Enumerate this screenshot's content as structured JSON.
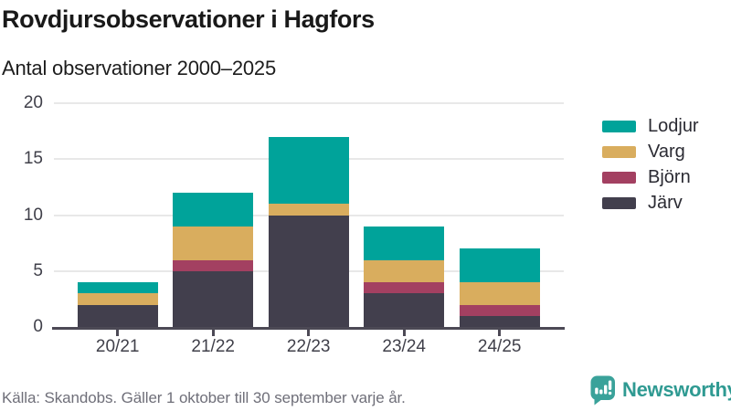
{
  "header": {
    "title": "Rovdjursobservationer i Hagfors",
    "subtitle": "Antal observationer 2000–2025"
  },
  "chart_data": {
    "type": "bar",
    "stacked": true,
    "title": "Rovdjursobservationer i Hagfors",
    "subtitle": "Antal observationer 2000–2025",
    "categories": [
      "20/21",
      "21/22",
      "22/23",
      "23/24",
      "24/25"
    ],
    "series": [
      {
        "name": "Järv",
        "color": "#423f4d",
        "values": [
          2,
          5,
          10,
          3,
          1
        ]
      },
      {
        "name": "Björn",
        "color": "#a34061",
        "values": [
          0,
          1,
          0,
          1,
          1
        ]
      },
      {
        "name": "Varg",
        "color": "#d9ad5e",
        "values": [
          1,
          3,
          1,
          2,
          2
        ]
      },
      {
        "name": "Lodjur",
        "color": "#00a39a",
        "values": [
          1,
          3,
          6,
          3,
          3
        ]
      }
    ],
    "totals": [
      4,
      12,
      17,
      9,
      7
    ],
    "xlabel": "",
    "ylabel": "",
    "ylim": [
      0,
      20
    ],
    "yticks": [
      0,
      5,
      10,
      15,
      20
    ],
    "grid": true,
    "legend_position": "right",
    "legend_order": [
      "Lodjur",
      "Varg",
      "Björn",
      "Järv"
    ]
  },
  "legend": {
    "items": [
      {
        "label": "Lodjur",
        "color": "#00a39a"
      },
      {
        "label": "Varg",
        "color": "#d9ad5e"
      },
      {
        "label": "Björn",
        "color": "#a34061"
      },
      {
        "label": "Järv",
        "color": "#423f4d"
      }
    ]
  },
  "footer": {
    "source": "Källa: Skandobs. Gäller 1 oktober till 30 september varje år."
  },
  "brand": {
    "name": "Newsworthy",
    "icon": "newsworthy-speech-bubble-barchart-icon",
    "color": "#2f9a92"
  },
  "colors": {
    "grid": "#e8e8e8",
    "axis": "#4c4955",
    "title_text": "#191919",
    "axis_label_text": "#40404a",
    "muted_text": "#6f6f79"
  }
}
